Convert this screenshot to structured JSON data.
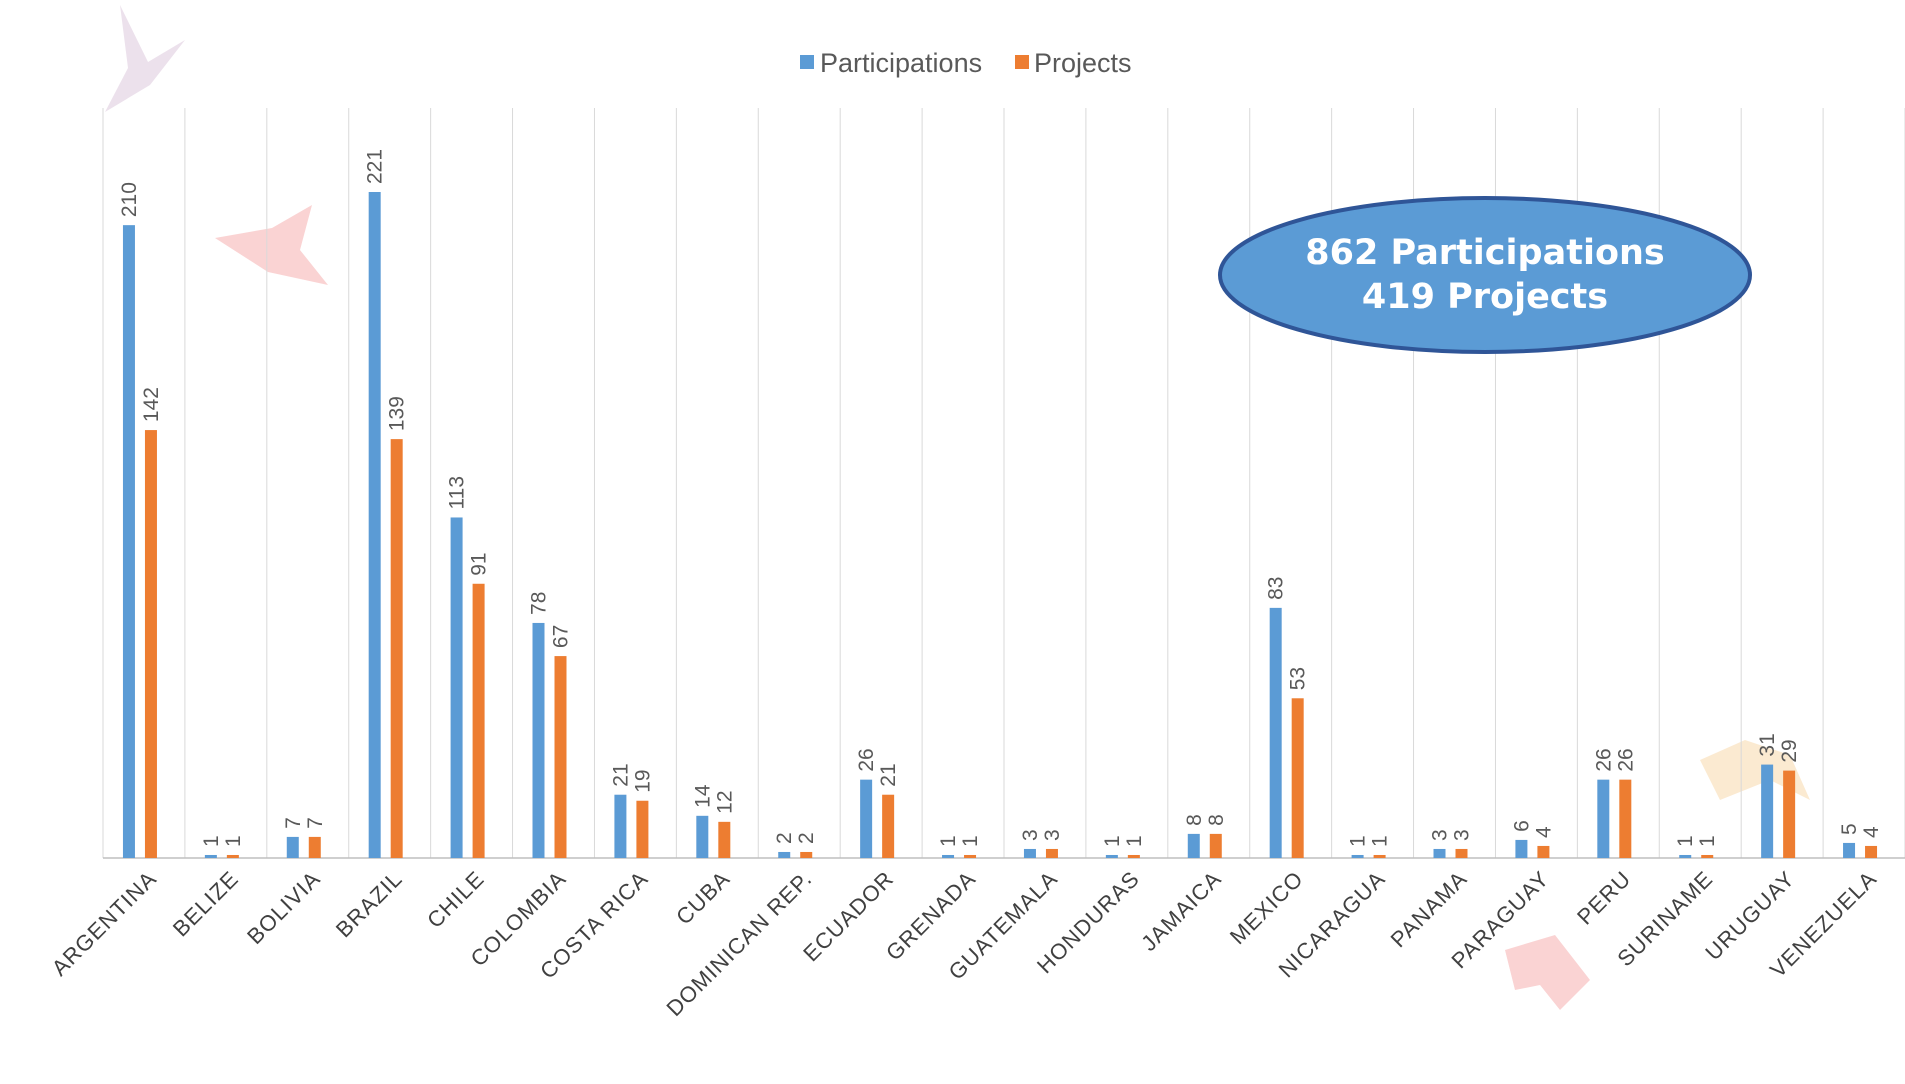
{
  "chart_data": {
    "type": "bar",
    "categories": [
      "ARGENTINA",
      "BELIZE",
      "BOLIVIA",
      "BRAZIL",
      "CHILE",
      "COLOMBIA",
      "COSTA RICA",
      "CUBA",
      "DOMINICAN REP.",
      "ECUADOR",
      "GRENADA",
      "GUATEMALA",
      "HONDURAS",
      "JAMAICA",
      "MEXICO",
      "NICARAGUA",
      "PANAMA",
      "PARAGUAY",
      "PERU",
      "SURINAME",
      "URUGUAY",
      "VENEZUELA"
    ],
    "series": [
      {
        "name": "Participations",
        "color": "#5B9BD5",
        "values": [
          210,
          1,
          7,
          221,
          113,
          78,
          21,
          14,
          2,
          26,
          1,
          3,
          1,
          8,
          83,
          1,
          3,
          6,
          26,
          1,
          31,
          5
        ]
      },
      {
        "name": "Projects",
        "color": "#ED7D31",
        "values": [
          142,
          1,
          7,
          139,
          91,
          67,
          19,
          12,
          2,
          21,
          1,
          3,
          1,
          8,
          53,
          1,
          3,
          4,
          26,
          1,
          29,
          4
        ]
      }
    ],
    "ylim": [
      0,
      240
    ],
    "grid": "vertical",
    "legend": "top-center",
    "data_labels": true,
    "xlabel": "",
    "ylabel": "",
    "title": ""
  },
  "callout": {
    "line1": "862 Participations",
    "line2": "419 Projects",
    "fill": "#5B9BD5",
    "border": "#2F5597"
  },
  "decorations": [
    "origami-bird-icon",
    "origami-bird-icon",
    "origami-bird-icon",
    "origami-bird-icon"
  ]
}
